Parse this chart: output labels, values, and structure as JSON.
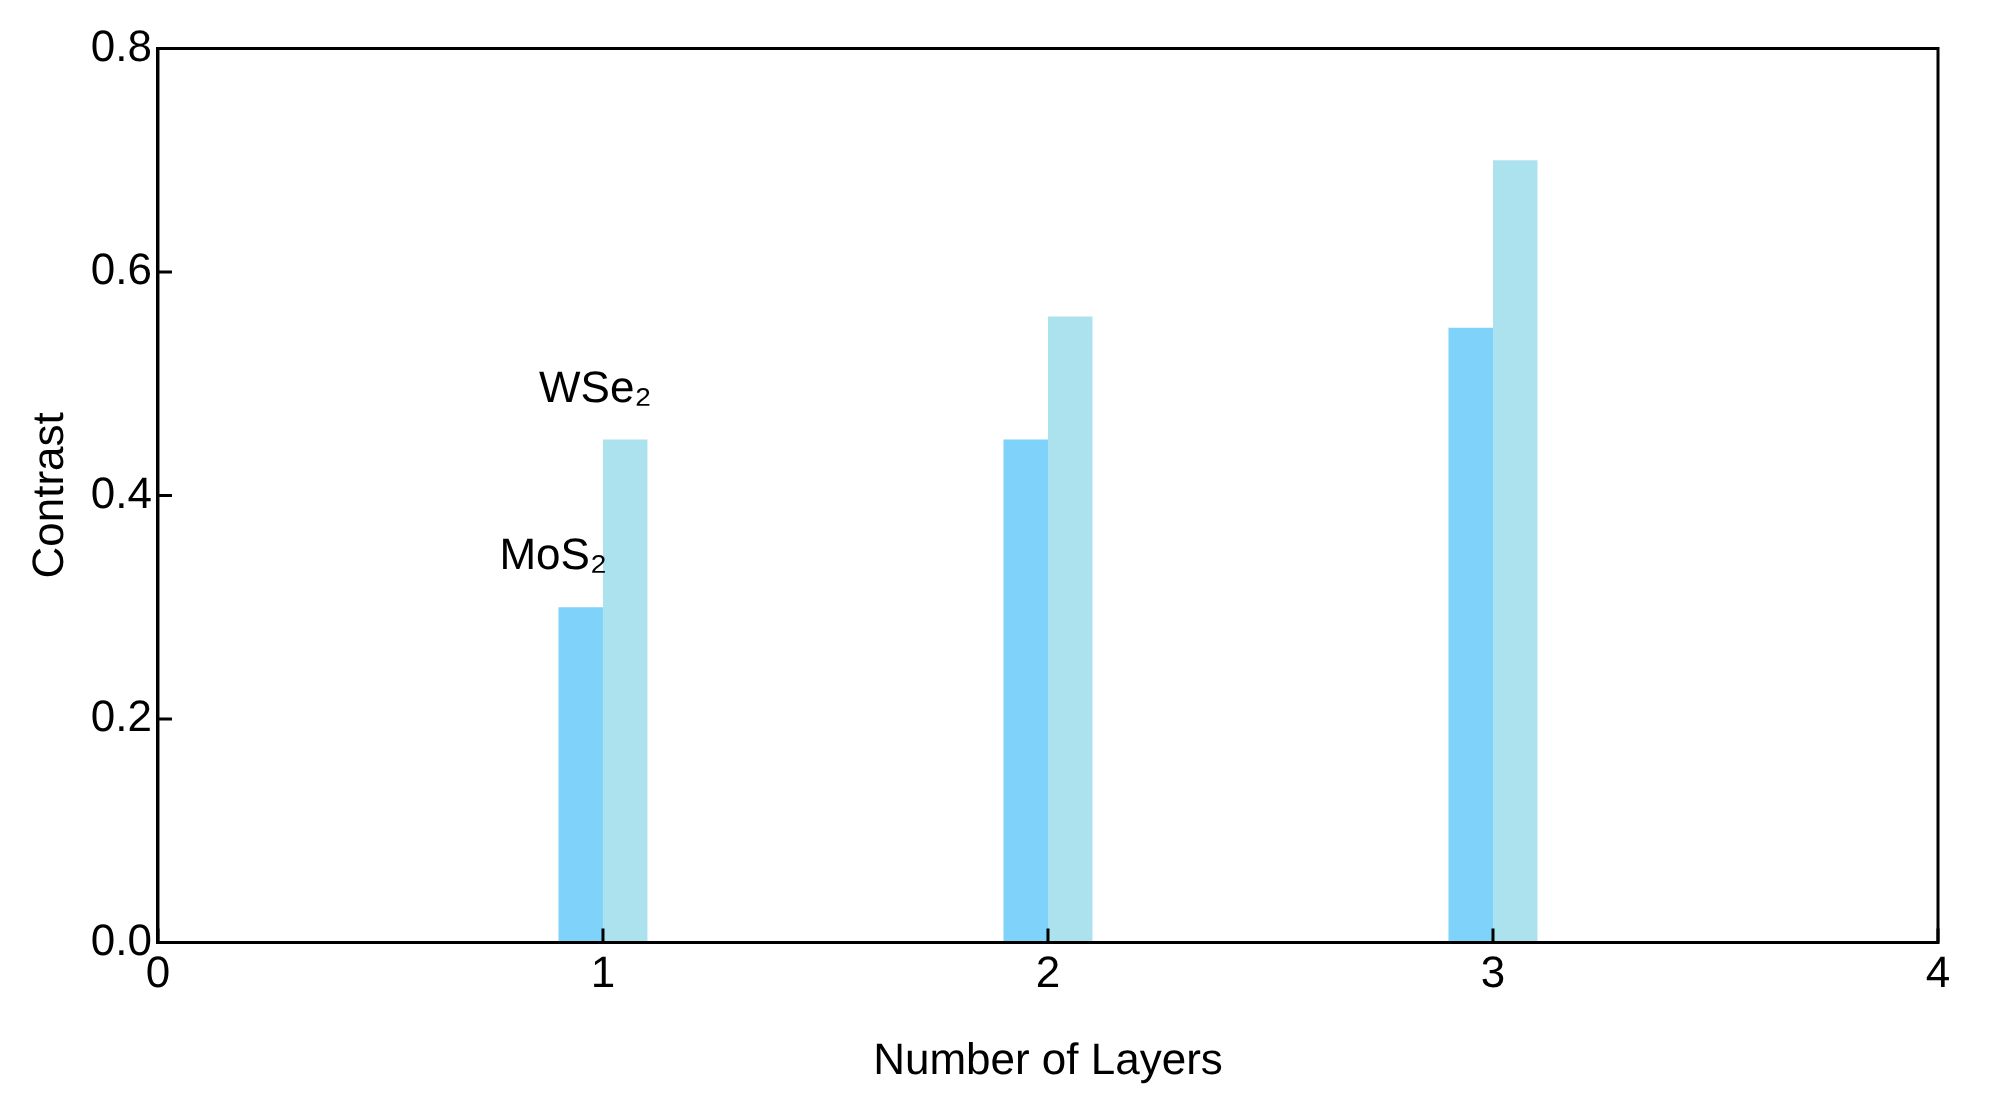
{
  "chart_data": {
    "type": "bar",
    "xlabel": "Number of Layers",
    "ylabel": "Contrast",
    "x": [
      1,
      2,
      3
    ],
    "series": [
      {
        "name": "MoS₂",
        "color": "#7fd3fa",
        "values": [
          0.3,
          0.45,
          0.55
        ]
      },
      {
        "name": "WSe₂",
        "color": "#abe2ee",
        "values": [
          0.45,
          0.56,
          0.7
        ]
      }
    ],
    "xlim": [
      0,
      4
    ],
    "xticks": [
      0,
      1,
      2,
      3,
      4
    ],
    "ylim": [
      0,
      0.8
    ],
    "yticks": [
      {
        "value": 0,
        "label": "0.0"
      },
      {
        "value": 0.2,
        "label": "0.2"
      },
      {
        "value": 0.4,
        "label": "0.4"
      },
      {
        "value": 0.6,
        "label": "0.6"
      },
      {
        "value": 0.8,
        "label": "0.8"
      }
    ],
    "grid": false,
    "legend": false
  }
}
